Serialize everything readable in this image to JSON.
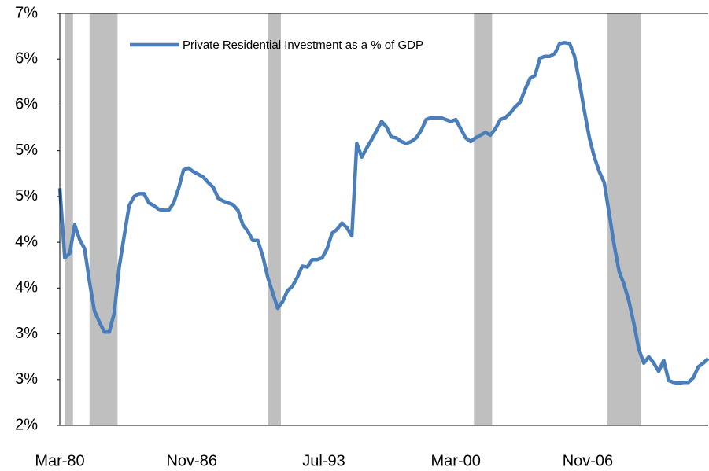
{
  "chart_data": {
    "type": "line",
    "x": [
      "Mar-80",
      "Jun-80",
      "Sep-80",
      "Dec-80",
      "Mar-81",
      "Jun-81",
      "Sep-81",
      "Dec-81",
      "Mar-82",
      "Jun-82",
      "Sep-82",
      "Dec-82",
      "Mar-83",
      "Jun-83",
      "Sep-83",
      "Dec-83",
      "Mar-84",
      "Jun-84",
      "Sep-84",
      "Dec-84",
      "Mar-85",
      "Jun-85",
      "Sep-85",
      "Dec-85",
      "Mar-86",
      "Jun-86",
      "Sep-86",
      "Dec-86",
      "Mar-87",
      "Jun-87",
      "Sep-87",
      "Dec-87",
      "Mar-88",
      "Jun-88",
      "Sep-88",
      "Dec-88",
      "Mar-89",
      "Jun-89",
      "Sep-89",
      "Dec-89",
      "Mar-90",
      "Jun-90",
      "Sep-90",
      "Dec-90",
      "Mar-91",
      "Jun-91",
      "Sep-91",
      "Dec-91",
      "Mar-92",
      "Jun-92",
      "Sep-92",
      "Dec-92",
      "Mar-93",
      "Jun-93",
      "Sep-93",
      "Dec-93",
      "Mar-94",
      "Jun-94",
      "Sep-94",
      "Dec-94",
      "Mar-95",
      "Jun-95",
      "Sep-95",
      "Dec-95",
      "Mar-96",
      "Jun-96",
      "Sep-96",
      "Dec-96",
      "Mar-97",
      "Jun-97",
      "Sep-97",
      "Dec-97",
      "Mar-98",
      "Jun-98",
      "Sep-98",
      "Dec-98",
      "Mar-99",
      "Jun-99",
      "Sep-99",
      "Dec-99",
      "Mar-00",
      "Jun-00",
      "Sep-00",
      "Dec-00",
      "Mar-01",
      "Jun-01",
      "Sep-01",
      "Dec-01",
      "Mar-02",
      "Jun-02",
      "Sep-02",
      "Dec-02",
      "Mar-03",
      "Jun-03",
      "Sep-03",
      "Dec-03",
      "Mar-04",
      "Jun-04",
      "Sep-04",
      "Dec-04",
      "Mar-05",
      "Jun-05",
      "Sep-05",
      "Dec-05",
      "Mar-06",
      "Jun-06",
      "Sep-06",
      "Dec-06",
      "Mar-07",
      "Jun-07",
      "Sep-07",
      "Dec-07",
      "Mar-08",
      "Jun-08",
      "Sep-08",
      "Dec-08",
      "Mar-09",
      "Jun-09",
      "Sep-09",
      "Dec-09",
      "Mar-10",
      "Jun-10",
      "Sep-10",
      "Dec-10",
      "Mar-11",
      "Jun-11",
      "Sep-11",
      "Dec-11",
      "Mar-12",
      "Jun-12",
      "Sep-12",
      "Dec-12"
    ],
    "series": [
      {
        "name": "Private Residential  Investment as a % of GDP",
        "color": "#4a7ebb",
        "values": [
          4.59,
          3.83,
          3.88,
          4.19,
          4.03,
          3.93,
          3.57,
          3.25,
          3.13,
          3.02,
          3.02,
          3.23,
          3.73,
          4.07,
          4.4,
          4.5,
          4.53,
          4.53,
          4.43,
          4.4,
          4.36,
          4.35,
          4.35,
          4.43,
          4.59,
          4.79,
          4.81,
          4.77,
          4.74,
          4.71,
          4.65,
          4.6,
          4.48,
          4.45,
          4.43,
          4.41,
          4.35,
          4.19,
          4.12,
          4.02,
          4.02,
          3.85,
          3.62,
          3.45,
          3.28,
          3.35,
          3.47,
          3.52,
          3.62,
          3.74,
          3.73,
          3.81,
          3.81,
          3.83,
          3.93,
          4.1,
          4.14,
          4.21,
          4.16,
          4.07,
          5.08,
          4.93,
          5.03,
          5.12,
          5.22,
          5.32,
          5.26,
          5.15,
          5.14,
          5.1,
          5.08,
          5.1,
          5.14,
          5.22,
          5.34,
          5.36,
          5.36,
          5.36,
          5.34,
          5.32,
          5.34,
          5.24,
          5.14,
          5.1,
          5.14,
          5.17,
          5.2,
          5.17,
          5.24,
          5.34,
          5.36,
          5.41,
          5.48,
          5.53,
          5.67,
          5.79,
          5.82,
          6.01,
          6.03,
          6.03,
          6.06,
          6.17,
          6.18,
          6.17,
          6.03,
          5.74,
          5.43,
          5.14,
          4.93,
          4.77,
          4.65,
          4.31,
          3.97,
          3.68,
          3.54,
          3.35,
          3.11,
          2.83,
          2.68,
          2.75,
          2.68,
          2.59,
          2.71,
          2.49,
          2.47,
          2.46,
          2.47,
          2.47,
          2.52,
          2.64,
          2.68,
          2.73
        ]
      }
    ],
    "recessions": [
      {
        "start": "Jun-80",
        "end": "Nov-80"
      },
      {
        "start": "Sep-81",
        "end": "Feb-83"
      },
      {
        "start": "Sep-90",
        "end": "May-91"
      },
      {
        "start": "Feb-01",
        "end": "Jan-02"
      },
      {
        "start": "Nov-07",
        "end": "Jul-09"
      }
    ],
    "recession_color": "#bfbfbf",
    "xlim": [
      "Mar-80",
      "Dec-12"
    ],
    "xticks": [
      "Mar-80",
      "Nov-86",
      "Jul-93",
      "Mar-00",
      "Nov-06"
    ],
    "ylim": [
      2,
      6.5
    ],
    "yticks": [
      {
        "value": 2,
        "label": "2%"
      },
      {
        "value": 2.5,
        "label": "3%"
      },
      {
        "value": 3,
        "label": "3%"
      },
      {
        "value": 3.5,
        "label": "4%"
      },
      {
        "value": 4,
        "label": "4%"
      },
      {
        "value": 4.5,
        "label": "5%"
      },
      {
        "value": 5,
        "label": "5%"
      },
      {
        "value": 5.5,
        "label": "6%"
      },
      {
        "value": 6,
        "label": "6%"
      },
      {
        "value": 6.5,
        "label": "7%"
      }
    ]
  }
}
